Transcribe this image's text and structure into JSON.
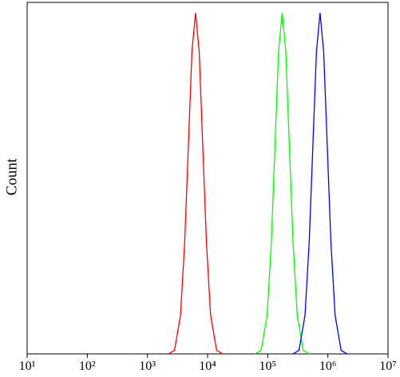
{
  "chart_data": {
    "type": "line",
    "y_label": "Count",
    "x_scale": "log",
    "xlim": [
      10,
      10000000
    ],
    "xticks": [
      {
        "value": 10,
        "label": "10¹"
      },
      {
        "value": 100,
        "label": "10²"
      },
      {
        "value": 1000,
        "label": "10³"
      },
      {
        "value": 10000,
        "label": "10⁴"
      },
      {
        "value": 100000,
        "label": "10⁵"
      },
      {
        "value": 1000000,
        "label": "10⁶"
      },
      {
        "value": 10000000,
        "label": "10⁷"
      }
    ],
    "ylim": [
      0,
      100
    ],
    "series": [
      {
        "color": "#ff0000",
        "x": [
          2239,
          2818,
          3548,
          4169,
          4786,
          5495,
          6310,
          7244,
          8318,
          9550,
          11220,
          14125,
          17783
        ],
        "values": [
          0,
          1,
          11,
          32,
          59,
          86,
          97,
          86,
          59,
          32,
          11,
          1,
          0
        ]
      },
      {
        "color": "#00ff00",
        "x": [
          61660,
          77625,
          97724,
          114815,
          131826,
          151356,
          173780,
          199526,
          229087,
          263027,
          309030,
          389045,
          489779
        ],
        "values": [
          0,
          1,
          11,
          32,
          59,
          86,
          97,
          86,
          59,
          32,
          11,
          1,
          0
        ]
      },
      {
        "color": "#0000ff",
        "x": [
          263027,
          331131,
          416869,
          489779,
          562341,
          645654,
          741310,
          851138,
          977237,
          1122018,
          1318257,
          1659587,
          2089296
        ],
        "values": [
          0,
          1,
          11,
          32,
          59,
          86,
          97,
          86,
          59,
          32,
          11,
          1,
          0
        ]
      }
    ]
  }
}
